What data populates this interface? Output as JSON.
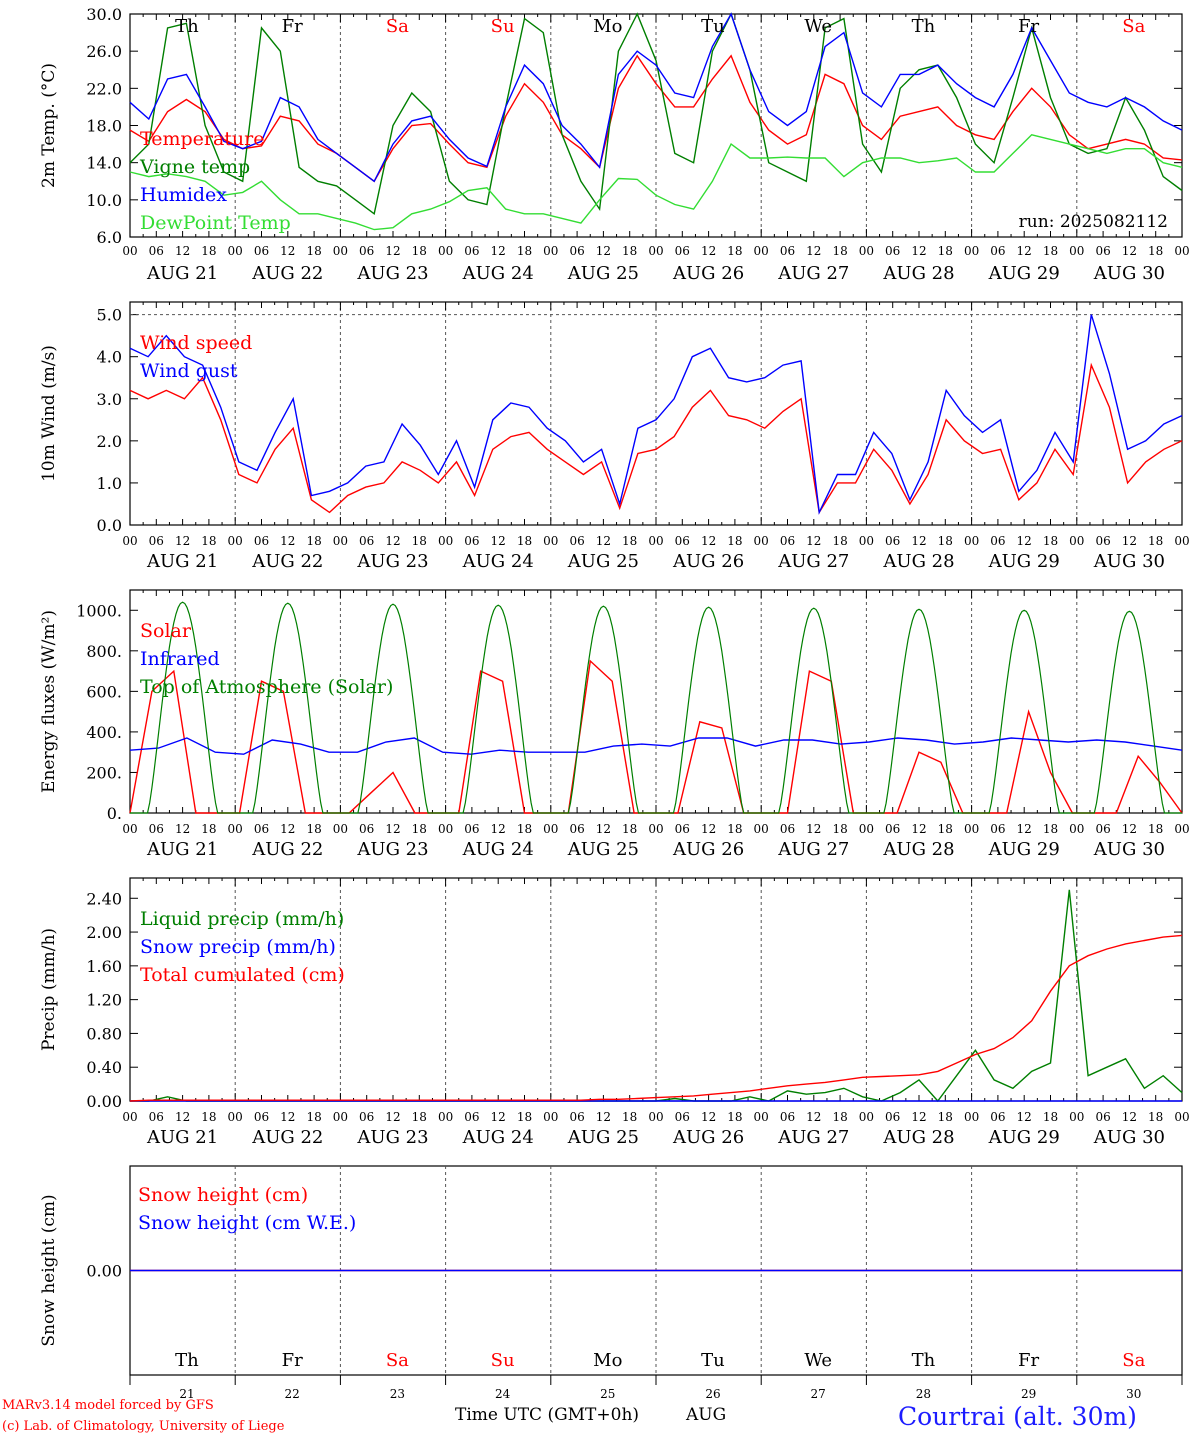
{
  "colors": {
    "red": "#ff0000",
    "green": "#007f00",
    "blue": "#0000ff",
    "lightgreen": "#33dd33",
    "grid": "#555555",
    "brand": "#1c1cff"
  },
  "days": {
    "weekday_labels": [
      "Th",
      "Fr",
      "Sa",
      "Su",
      "Mo",
      "Tu",
      "We",
      "Th",
      "Fr",
      "Sa"
    ],
    "weekend": [
      false,
      false,
      true,
      true,
      false,
      false,
      false,
      false,
      false,
      true
    ],
    "date_labels": [
      "AUG 21",
      "AUG 22",
      "AUG 23",
      "AUG 24",
      "AUG 25",
      "AUG 26",
      "AUG 27",
      "AUG 28",
      "AUG 29",
      "AUG 30"
    ],
    "day_numbers": [
      "21",
      "22",
      "23",
      "24",
      "25",
      "26",
      "27",
      "28",
      "29",
      "30"
    ],
    "hour_ticks": [
      "00",
      "06",
      "12",
      "18"
    ],
    "final_tick": "00"
  },
  "footer": {
    "model": "MARv3.14 model forced by GFS",
    "copyright": "(c) Lab. of Climatology, University of Liege",
    "time_axis": "Time UTC (GMT+0h)",
    "month": "AUG",
    "station": "Courtrai (alt. 30m)"
  },
  "chart_data": [
    {
      "type": "line",
      "id": "temperature",
      "ylabel": "2m Temp. (°C)",
      "ylim": [
        6.0,
        30.0
      ],
      "yticks": [
        "6.0",
        "10.0",
        "14.0",
        "18.0",
        "22.0",
        "26.0",
        "30.0"
      ],
      "annotation": "run: 2025082112",
      "x_hours": "0..240 step 6",
      "series": [
        {
          "name": "Temperature",
          "color": "red",
          "values": [
            17.5,
            16.3,
            19.5,
            20.8,
            19.5,
            16.5,
            15.5,
            15.8,
            19.0,
            18.5,
            16.0,
            15.0,
            13.5,
            12.0,
            15.5,
            18.0,
            18.2,
            16.0,
            14.0,
            13.5,
            19.0,
            22.5,
            20.5,
            17.0,
            15.5,
            13.5,
            22.0,
            25.5,
            22.5,
            20.0,
            20.0,
            23.0,
            25.5,
            20.5,
            17.5,
            16.0,
            17.0,
            23.5,
            22.5,
            18.0,
            16.5,
            19.0,
            19.5,
            20.0,
            18.0,
            17.0,
            16.5,
            19.5,
            22.0,
            20.0,
            17.0,
            15.5,
            16.0,
            16.5,
            16.0,
            14.5,
            14.3
          ]
        },
        {
          "name": "Vigne temp",
          "color": "green",
          "values": [
            14.0,
            16.0,
            28.5,
            29.0,
            18.0,
            13.0,
            12.0,
            28.5,
            26.0,
            13.5,
            12.0,
            11.5,
            10.0,
            8.5,
            18.0,
            21.5,
            19.5,
            12.0,
            10.0,
            9.5,
            20.0,
            29.5,
            28.0,
            17.0,
            12.0,
            9.0,
            26.0,
            30.0,
            25.0,
            15.0,
            14.0,
            26.0,
            30.0,
            24.0,
            14.0,
            13.0,
            12.0,
            28.5,
            29.5,
            16.0,
            13.0,
            22.0,
            24.0,
            24.5,
            21.0,
            16.0,
            14.0,
            21.0,
            28.5,
            21.0,
            16.0,
            15.0,
            15.5,
            21.0,
            17.5,
            12.5,
            11.0
          ]
        },
        {
          "name": "Humidex",
          "color": "blue",
          "values": [
            20.5,
            18.7,
            23.0,
            23.5,
            20.0,
            16.3,
            15.5,
            16.3,
            21.0,
            20.0,
            16.5,
            15.0,
            13.5,
            12.0,
            16.0,
            18.5,
            19.0,
            16.5,
            14.5,
            13.6,
            20.0,
            24.5,
            22.5,
            18.0,
            16.0,
            13.5,
            23.5,
            26.0,
            24.5,
            21.5,
            21.0,
            26.5,
            30.0,
            24.0,
            19.5,
            18.0,
            19.5,
            26.5,
            28.0,
            21.5,
            20.0,
            23.5,
            23.5,
            24.5,
            22.5,
            21.0,
            20.0,
            23.5,
            28.5,
            25.0,
            21.5,
            20.5,
            20.0,
            21.0,
            20.0,
            18.5,
            17.5
          ]
        },
        {
          "name": "DewPoint Temp",
          "color": "lightgreen",
          "values": [
            13.0,
            12.5,
            12.8,
            12.5,
            12.0,
            10.5,
            10.8,
            12.0,
            10.0,
            8.5,
            8.5,
            8.0,
            7.5,
            6.8,
            7.0,
            8.5,
            9.0,
            9.8,
            11.0,
            11.3,
            9.0,
            8.5,
            8.5,
            8.0,
            7.5,
            10.0,
            12.3,
            12.2,
            10.5,
            9.5,
            9.0,
            12.0,
            16.0,
            14.5,
            14.5,
            14.6,
            14.5,
            14.5,
            12.5,
            14.0,
            14.5,
            14.5,
            14.0,
            14.2,
            14.5,
            13.0,
            13.0,
            15.0,
            17.0,
            16.5,
            16.0,
            15.5,
            15.0,
            15.5,
            15.5,
            14.0,
            13.5
          ]
        }
      ]
    },
    {
      "type": "line",
      "id": "wind",
      "ylabel": "10m Wind (m/s)",
      "ylim": [
        0.0,
        5.3
      ],
      "yticks": [
        "0.0",
        "1.0",
        "2.0",
        "3.0",
        "4.0",
        "5.0"
      ],
      "reference_line": 5.0,
      "x_hours": "0..240 step 6",
      "series": [
        {
          "name": "Wind speed",
          "color": "red",
          "values": [
            3.2,
            3.0,
            3.2,
            3.0,
            3.5,
            2.5,
            1.2,
            1.0,
            1.8,
            2.3,
            0.6,
            0.3,
            0.7,
            0.9,
            1.0,
            1.5,
            1.3,
            1.0,
            1.5,
            0.7,
            1.8,
            2.1,
            2.2,
            1.8,
            1.5,
            1.2,
            1.5,
            0.4,
            1.7,
            1.8,
            2.1,
            2.8,
            3.2,
            2.6,
            2.5,
            2.3,
            2.7,
            3.0,
            0.3,
            1.0,
            1.0,
            1.8,
            1.3,
            0.5,
            1.2,
            2.5,
            2.0,
            1.7,
            1.8,
            0.6,
            1.0,
            1.8,
            1.2,
            3.8,
            2.8,
            1.0,
            1.5,
            1.8,
            2.0
          ]
        },
        {
          "name": "Wind gust",
          "color": "blue",
          "values": [
            4.2,
            4.0,
            4.5,
            4.0,
            3.8,
            2.8,
            1.5,
            1.3,
            2.2,
            3.0,
            0.7,
            0.8,
            1.0,
            1.4,
            1.5,
            2.4,
            1.9,
            1.2,
            2.0,
            0.9,
            2.5,
            2.9,
            2.8,
            2.3,
            2.0,
            1.5,
            1.8,
            0.5,
            2.3,
            2.5,
            3.0,
            4.0,
            4.2,
            3.5,
            3.4,
            3.5,
            3.8,
            3.9,
            0.3,
            1.2,
            1.2,
            2.2,
            1.7,
            0.6,
            1.5,
            3.2,
            2.6,
            2.2,
            2.5,
            0.8,
            1.3,
            2.2,
            1.5,
            5.0,
            3.6,
            1.8,
            2.0,
            2.4,
            2.6
          ]
        }
      ]
    },
    {
      "type": "line",
      "id": "energy",
      "ylabel": "Energy fluxes (W/m²)",
      "ylim": [
        0,
        1100
      ],
      "yticks": [
        "0.",
        "200.",
        "400.",
        "600.",
        "800.",
        "1000."
      ],
      "x_hours": "0..240 step 6",
      "series": [
        {
          "name": "Solar",
          "color": "red",
          "values": [
            0,
            600,
            700,
            0,
            0,
            0,
            650,
            600,
            0,
            0,
            0,
            100,
            200,
            0,
            0,
            0,
            700,
            650,
            0,
            0,
            0,
            750,
            650,
            0,
            0,
            0,
            450,
            420,
            0,
            0,
            0,
            700,
            650,
            0,
            0,
            0,
            300,
            250,
            0,
            0,
            0,
            500,
            200,
            0,
            0,
            0,
            280,
            150,
            0
          ]
        },
        {
          "name": "Infrared",
          "color": "blue",
          "values": [
            310,
            320,
            370,
            300,
            290,
            360,
            340,
            300,
            300,
            350,
            370,
            300,
            290,
            310,
            300,
            300,
            300,
            330,
            340,
            330,
            370,
            370,
            330,
            360,
            360,
            340,
            350,
            370,
            360,
            340,
            350,
            370,
            360,
            350,
            360,
            350,
            330,
            310
          ]
        },
        {
          "name": "Top of Atmosphere (Solar)",
          "color": "green",
          "max_per_day": [
            1040,
            1035,
            1030,
            1025,
            1020,
            1015,
            1010,
            1005,
            1000,
            995
          ]
        }
      ]
    },
    {
      "type": "line",
      "id": "precip",
      "ylabel": "Precip (mm/h)",
      "ylim": [
        0.0,
        2.64
      ],
      "yticks": [
        "0.00",
        "0.40",
        "0.80",
        "1.20",
        "1.60",
        "2.00",
        "2.40"
      ],
      "x_hours": "0..240 step 6",
      "series": [
        {
          "name": "Liquid precip (mm/h)",
          "color": "green",
          "values": [
            0,
            0,
            0.05,
            0,
            0,
            0,
            0,
            0,
            0,
            0,
            0,
            0,
            0,
            0,
            0,
            0,
            0,
            0,
            0,
            0,
            0,
            0,
            0,
            0,
            0,
            0,
            0,
            0,
            0,
            0.03,
            0,
            0,
            0,
            0.05,
            0,
            0.12,
            0.08,
            0.1,
            0.15,
            0.05,
            0,
            0.1,
            0.25,
            0,
            0.3,
            0.6,
            0.25,
            0.15,
            0.35,
            0.45,
            2.5,
            0.3,
            0.4,
            0.5,
            0.15,
            0.3,
            0.1
          ]
        },
        {
          "name": "Snow precip (mm/h)",
          "color": "blue",
          "values": [
            0,
            0,
            0,
            0,
            0,
            0,
            0,
            0,
            0,
            0,
            0,
            0,
            0,
            0,
            0,
            0,
            0,
            0,
            0,
            0,
            0,
            0,
            0,
            0,
            0,
            0,
            0,
            0,
            0,
            0,
            0,
            0,
            0,
            0,
            0,
            0,
            0,
            0,
            0,
            0,
            0,
            0
          ]
        },
        {
          "name": "Total cumulated (cm)",
          "color": "red",
          "values": [
            0.0,
            0.01,
            0.01,
            0.01,
            0.01,
            0.01,
            0.01,
            0.01,
            0.01,
            0.01,
            0.01,
            0.01,
            0.01,
            0.01,
            0.01,
            0.01,
            0.01,
            0.01,
            0.01,
            0.01,
            0.01,
            0.01,
            0.01,
            0.01,
            0.01,
            0.02,
            0.02,
            0.03,
            0.04,
            0.05,
            0.06,
            0.08,
            0.1,
            0.12,
            0.15,
            0.18,
            0.2,
            0.22,
            0.25,
            0.28,
            0.29,
            0.3,
            0.31,
            0.35,
            0.45,
            0.55,
            0.62,
            0.75,
            0.95,
            1.3,
            1.6,
            1.72,
            1.8,
            1.86,
            1.9,
            1.94,
            1.96
          ]
        }
      ]
    },
    {
      "type": "line",
      "id": "snow",
      "ylabel": "Snow height (cm)",
      "ylim": [
        -1.0,
        1.0
      ],
      "yticks": [
        "0.00"
      ],
      "series": [
        {
          "name": "Snow height (cm)",
          "color": "red",
          "values": [
            0.0,
            0.0
          ]
        },
        {
          "name": "Snow height (cm W.E.)",
          "color": "blue",
          "values": [
            0.0,
            0.0
          ]
        }
      ]
    }
  ]
}
